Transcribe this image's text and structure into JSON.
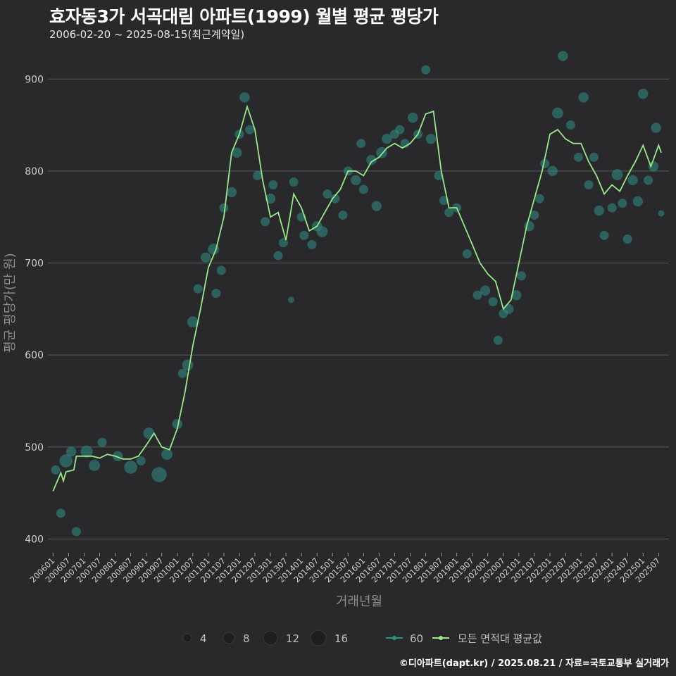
{
  "header": {
    "title": "효자동3가 서곡대림 아파트(1999) 월별 평균 평당가",
    "subtitle": "2006-02-20 ~ 2025-08-15(최근계약일)"
  },
  "footer": {
    "credit": "©디아파트(dapt.kr) / 2025.08.21 / 자료=국토교통부 실거래가"
  },
  "colors": {
    "background": "#29292b",
    "line": "#98e888",
    "points": "#2f8f86",
    "grid": "#5a5a5c",
    "text": "#e6e6e6"
  },
  "chart_data": {
    "type": "line",
    "xlabel": "거래년월",
    "ylabel": "평균 평당가(만 원)",
    "ylim": [
      385,
      940
    ],
    "yticks": [
      400,
      500,
      600,
      700,
      800,
      900
    ],
    "xlim": [
      "2005-11",
      "2025-11"
    ],
    "xticks": [
      "200601",
      "200607",
      "200701",
      "200707",
      "200801",
      "200807",
      "200901",
      "200907",
      "201001",
      "201007",
      "201101",
      "201107",
      "201201",
      "201207",
      "201301",
      "201307",
      "201401",
      "201407",
      "201501",
      "201507",
      "201601",
      "201607",
      "201701",
      "201707",
      "201801",
      "201807",
      "201901",
      "201907",
      "202001",
      "202007",
      "202101",
      "202107",
      "202201",
      "202207",
      "202301",
      "202307",
      "202401",
      "202407",
      "202501",
      "202507"
    ],
    "legend": {
      "size_title": "",
      "sizes": [
        4,
        8,
        12,
        16
      ],
      "series_label": "60",
      "line_label": "모든 면적대 평균값"
    },
    "series": [
      {
        "name": "모든 면적대 평균값",
        "points": [
          [
            "2006-01",
            452
          ],
          [
            "2006-04",
            472
          ],
          [
            "2006-05",
            463
          ],
          [
            "2006-06",
            473
          ],
          [
            "2006-09",
            475
          ],
          [
            "2006-10",
            490
          ],
          [
            "2007-01",
            490
          ],
          [
            "2007-04",
            490
          ],
          [
            "2007-07",
            488
          ],
          [
            "2007-10",
            492
          ],
          [
            "2008-01",
            490
          ],
          [
            "2008-04",
            487
          ],
          [
            "2008-07",
            487
          ],
          [
            "2008-10",
            490
          ],
          [
            "2009-01",
            502
          ],
          [
            "2009-04",
            515
          ],
          [
            "2009-07",
            500
          ],
          [
            "2009-10",
            497
          ],
          [
            "2010-01",
            520
          ],
          [
            "2010-04",
            560
          ],
          [
            "2010-07",
            610
          ],
          [
            "2010-10",
            650
          ],
          [
            "2011-01",
            695
          ],
          [
            "2011-04",
            715
          ],
          [
            "2011-07",
            750
          ],
          [
            "2011-10",
            820
          ],
          [
            "2012-01",
            840
          ],
          [
            "2012-04",
            870
          ],
          [
            "2012-07",
            845
          ],
          [
            "2012-10",
            790
          ],
          [
            "2013-01",
            750
          ],
          [
            "2013-04",
            755
          ],
          [
            "2013-07",
            725
          ],
          [
            "2013-10",
            775
          ],
          [
            "2014-01",
            760
          ],
          [
            "2014-04",
            735
          ],
          [
            "2014-07",
            740
          ],
          [
            "2014-10",
            755
          ],
          [
            "2015-01",
            770
          ],
          [
            "2015-04",
            780
          ],
          [
            "2015-07",
            800
          ],
          [
            "2015-10",
            800
          ],
          [
            "2016-01",
            795
          ],
          [
            "2016-04",
            810
          ],
          [
            "2016-07",
            815
          ],
          [
            "2016-10",
            825
          ],
          [
            "2017-01",
            830
          ],
          [
            "2017-04",
            825
          ],
          [
            "2017-07",
            830
          ],
          [
            "2017-10",
            840
          ],
          [
            "2018-01",
            862
          ],
          [
            "2018-04",
            865
          ],
          [
            "2018-07",
            800
          ],
          [
            "2018-10",
            760
          ],
          [
            "2019-01",
            760
          ],
          [
            "2019-04",
            740
          ],
          [
            "2019-07",
            720
          ],
          [
            "2019-10",
            700
          ],
          [
            "2020-01",
            688
          ],
          [
            "2020-04",
            680
          ],
          [
            "2020-07",
            650
          ],
          [
            "2020-10",
            660
          ],
          [
            "2021-01",
            700
          ],
          [
            "2021-04",
            740
          ],
          [
            "2021-07",
            770
          ],
          [
            "2021-10",
            800
          ],
          [
            "2022-01",
            840
          ],
          [
            "2022-04",
            845
          ],
          [
            "2022-07",
            835
          ],
          [
            "2022-10",
            830
          ],
          [
            "2023-01",
            830
          ],
          [
            "2023-04",
            810
          ],
          [
            "2023-07",
            795
          ],
          [
            "2023-10",
            775
          ],
          [
            "2024-01",
            785
          ],
          [
            "2024-04",
            778
          ],
          [
            "2024-07",
            795
          ],
          [
            "2024-10",
            810
          ],
          [
            "2025-01",
            828
          ],
          [
            "2025-04",
            805
          ],
          [
            "2025-07",
            828
          ],
          [
            "2025-08",
            820
          ]
        ]
      },
      {
        "name": "60",
        "points": [
          [
            "2006-02",
            475,
            5
          ],
          [
            "2006-04",
            428,
            5
          ],
          [
            "2006-06",
            485,
            9
          ],
          [
            "2006-08",
            495,
            6
          ],
          [
            "2006-10",
            408,
            5
          ],
          [
            "2007-02",
            495,
            8
          ],
          [
            "2007-05",
            480,
            7
          ],
          [
            "2007-08",
            505,
            5
          ],
          [
            "2008-02",
            490,
            6
          ],
          [
            "2008-07",
            478,
            9
          ],
          [
            "2008-11",
            485,
            5
          ],
          [
            "2009-02",
            515,
            7
          ],
          [
            "2009-06",
            470,
            11
          ],
          [
            "2009-09",
            492,
            7
          ],
          [
            "2010-01",
            525,
            6
          ],
          [
            "2010-03",
            580,
            5
          ],
          [
            "2010-05",
            589,
            7
          ],
          [
            "2010-07",
            636,
            7
          ],
          [
            "2010-09",
            672,
            5
          ],
          [
            "2010-12",
            706,
            6
          ],
          [
            "2011-03",
            715,
            7
          ],
          [
            "2011-04",
            667,
            5
          ],
          [
            "2011-06",
            692,
            5
          ],
          [
            "2011-07",
            760,
            5
          ],
          [
            "2011-10",
            777,
            6
          ],
          [
            "2011-12",
            820,
            6
          ],
          [
            "2012-01",
            840,
            5
          ],
          [
            "2012-03",
            880,
            6
          ],
          [
            "2012-05",
            845,
            5
          ],
          [
            "2012-08",
            795,
            5
          ],
          [
            "2012-11",
            745,
            5
          ],
          [
            "2013-01",
            770,
            6
          ],
          [
            "2013-02",
            785,
            5
          ],
          [
            "2013-04",
            708,
            5
          ],
          [
            "2013-06",
            722,
            5
          ],
          [
            "2013-09",
            660,
            2
          ],
          [
            "2013-10",
            788,
            5
          ],
          [
            "2014-01",
            750,
            5
          ],
          [
            "2014-02",
            730,
            5
          ],
          [
            "2014-05",
            720,
            5
          ],
          [
            "2014-07",
            740,
            6
          ],
          [
            "2014-09",
            734,
            7
          ],
          [
            "2014-11",
            775,
            5
          ],
          [
            "2015-02",
            770,
            5
          ],
          [
            "2015-05",
            752,
            5
          ],
          [
            "2015-07",
            800,
            5
          ],
          [
            "2015-10",
            790,
            6
          ],
          [
            "2015-12",
            830,
            5
          ],
          [
            "2016-01",
            780,
            5
          ],
          [
            "2016-04",
            812,
            6
          ],
          [
            "2016-06",
            762,
            6
          ],
          [
            "2016-08",
            820,
            7
          ],
          [
            "2016-10",
            835,
            6
          ],
          [
            "2017-01",
            840,
            5
          ],
          [
            "2017-03",
            845,
            5
          ],
          [
            "2017-05",
            830,
            5
          ],
          [
            "2017-08",
            858,
            6
          ],
          [
            "2017-10",
            840,
            5
          ],
          [
            "2018-01",
            910,
            5
          ],
          [
            "2018-03",
            835,
            6
          ],
          [
            "2018-06",
            795,
            5
          ],
          [
            "2018-08",
            768,
            5
          ],
          [
            "2018-10",
            755,
            5
          ],
          [
            "2019-01",
            760,
            5
          ],
          [
            "2019-05",
            710,
            5
          ],
          [
            "2019-09",
            665,
            5
          ],
          [
            "2019-12",
            670,
            6
          ],
          [
            "2020-03",
            658,
            5
          ],
          [
            "2020-05",
            616,
            5
          ],
          [
            "2020-07",
            645,
            5
          ],
          [
            "2020-09",
            650,
            6
          ],
          [
            "2020-12",
            665,
            6
          ],
          [
            "2021-02",
            686,
            5
          ],
          [
            "2021-05",
            740,
            6
          ],
          [
            "2021-07",
            752,
            5
          ],
          [
            "2021-09",
            770,
            5
          ],
          [
            "2021-11",
            808,
            5
          ],
          [
            "2022-02",
            800,
            6
          ],
          [
            "2022-04",
            863,
            7
          ],
          [
            "2022-06",
            925,
            6
          ],
          [
            "2022-09",
            850,
            5
          ],
          [
            "2022-12",
            815,
            5
          ],
          [
            "2023-02",
            880,
            6
          ],
          [
            "2023-04",
            785,
            5
          ],
          [
            "2023-06",
            815,
            5
          ],
          [
            "2023-08",
            757,
            6
          ],
          [
            "2023-10",
            730,
            5
          ],
          [
            "2024-01",
            760,
            5
          ],
          [
            "2024-03",
            796,
            7
          ],
          [
            "2024-05",
            765,
            5
          ],
          [
            "2024-07",
            726,
            5
          ],
          [
            "2024-09",
            790,
            6
          ],
          [
            "2024-11",
            767,
            6
          ],
          [
            "2025-01",
            884,
            6
          ],
          [
            "2025-03",
            790,
            5
          ],
          [
            "2025-05",
            805,
            6
          ],
          [
            "2025-06",
            847,
            6
          ],
          [
            "2025-08",
            754,
            2
          ]
        ]
      }
    ]
  }
}
